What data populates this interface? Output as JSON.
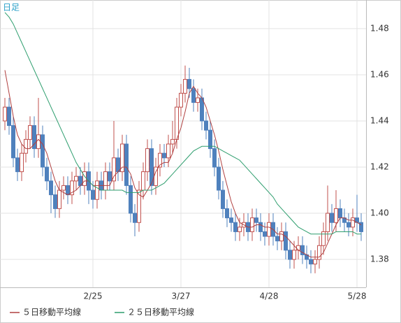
{
  "chart_data": {
    "type": "candlestick",
    "title": "日足",
    "categories": [
      null,
      null,
      null,
      null,
      null,
      null,
      null,
      null,
      null,
      null,
      null,
      null,
      null,
      null,
      null,
      null,
      null,
      null,
      null,
      null,
      null,
      "2/25",
      null,
      null,
      null,
      null,
      null,
      null,
      null,
      null,
      null,
      null,
      null,
      null,
      null,
      null,
      null,
      null,
      null,
      null,
      null,
      null,
      "3/27",
      null,
      null,
      null,
      null,
      null,
      null,
      null,
      null,
      null,
      null,
      null,
      null,
      null,
      null,
      null,
      null,
      null,
      null,
      null,
      null,
      "4/28",
      null,
      null,
      null,
      null,
      null,
      null,
      null,
      null,
      null,
      null,
      null,
      null,
      null,
      null,
      null,
      null,
      null,
      null,
      null,
      null,
      "5/28",
      null
    ],
    "open": [
      1.44,
      1.446,
      1.438,
      1.424,
      1.418,
      1.426,
      1.432,
      1.438,
      1.428,
      1.434,
      1.42,
      1.414,
      1.408,
      1.402,
      1.41,
      1.412,
      1.408,
      1.414,
      1.416,
      1.412,
      1.418,
      1.41,
      1.406,
      1.414,
      1.41,
      1.418,
      1.414,
      1.424,
      1.418,
      1.43,
      1.412,
      1.4,
      1.396,
      1.41,
      1.418,
      1.428,
      1.412,
      1.42,
      1.426,
      1.424,
      1.43,
      1.432,
      1.446,
      1.452,
      1.458,
      1.454,
      1.448,
      1.45,
      1.44,
      1.436,
      1.428,
      1.42,
      1.41,
      1.402,
      1.398,
      1.396,
      1.392,
      1.394,
      1.396,
      1.392,
      1.398,
      1.396,
      1.392,
      1.39,
      1.396,
      1.39,
      1.388,
      1.392,
      1.384,
      1.38,
      1.384,
      1.386,
      1.382,
      1.38,
      1.378,
      1.38,
      1.386,
      1.392,
      1.4,
      1.396,
      1.402,
      1.398,
      1.396,
      1.394,
      1.398,
      1.396
    ],
    "high": [
      1.45,
      1.45,
      1.442,
      1.428,
      1.43,
      1.436,
      1.442,
      1.442,
      1.45,
      1.438,
      1.424,
      1.418,
      1.412,
      1.414,
      1.416,
      1.416,
      1.418,
      1.42,
      1.42,
      1.422,
      1.422,
      1.414,
      1.418,
      1.418,
      1.422,
      1.422,
      1.44,
      1.428,
      1.434,
      1.434,
      1.416,
      1.404,
      1.414,
      1.422,
      1.432,
      1.432,
      1.424,
      1.43,
      1.43,
      1.434,
      1.44,
      1.45,
      1.456,
      1.464,
      1.463,
      1.458,
      1.454,
      1.454,
      1.444,
      1.44,
      1.432,
      1.424,
      1.414,
      1.406,
      1.402,
      1.4,
      1.398,
      1.4,
      1.4,
      1.402,
      1.402,
      1.4,
      1.396,
      1.4,
      1.4,
      1.394,
      1.396,
      1.396,
      1.388,
      1.388,
      1.39,
      1.39,
      1.386,
      1.384,
      1.384,
      1.39,
      1.396,
      1.412,
      1.404,
      1.41,
      1.406,
      1.402,
      1.4,
      1.402,
      1.408,
      1.4
    ],
    "low": [
      1.436,
      1.434,
      1.42,
      1.414,
      1.414,
      1.422,
      1.428,
      1.424,
      1.424,
      1.416,
      1.41,
      1.4,
      1.398,
      1.398,
      1.406,
      1.404,
      1.404,
      1.41,
      1.408,
      1.408,
      1.404,
      1.402,
      1.402,
      1.406,
      1.406,
      1.41,
      1.41,
      1.414,
      1.414,
      1.408,
      1.396,
      1.39,
      1.392,
      1.406,
      1.414,
      1.408,
      1.408,
      1.416,
      1.42,
      1.42,
      1.426,
      1.428,
      1.442,
      1.448,
      1.45,
      1.444,
      1.444,
      1.436,
      1.432,
      1.424,
      1.416,
      1.406,
      1.398,
      1.394,
      1.392,
      1.388,
      1.388,
      1.39,
      1.388,
      1.388,
      1.392,
      1.388,
      1.386,
      1.386,
      1.386,
      1.384,
      1.384,
      1.38,
      1.376,
      1.376,
      1.38,
      1.378,
      1.376,
      1.374,
      1.374,
      1.376,
      1.382,
      1.388,
      1.392,
      1.392,
      1.394,
      1.392,
      1.39,
      1.39,
      1.392,
      1.388
    ],
    "close": [
      1.446,
      1.438,
      1.424,
      1.418,
      1.426,
      1.432,
      1.438,
      1.428,
      1.434,
      1.42,
      1.414,
      1.408,
      1.402,
      1.41,
      1.412,
      1.408,
      1.414,
      1.416,
      1.412,
      1.418,
      1.41,
      1.406,
      1.414,
      1.41,
      1.418,
      1.414,
      1.424,
      1.418,
      1.43,
      1.412,
      1.4,
      1.396,
      1.41,
      1.418,
      1.428,
      1.412,
      1.42,
      1.426,
      1.424,
      1.43,
      1.432,
      1.446,
      1.452,
      1.458,
      1.454,
      1.448,
      1.45,
      1.44,
      1.436,
      1.428,
      1.42,
      1.41,
      1.402,
      1.398,
      1.396,
      1.392,
      1.394,
      1.396,
      1.392,
      1.398,
      1.396,
      1.392,
      1.39,
      1.396,
      1.39,
      1.388,
      1.392,
      1.384,
      1.38,
      1.384,
      1.386,
      1.382,
      1.38,
      1.378,
      1.38,
      1.386,
      1.392,
      1.4,
      1.396,
      1.402,
      1.398,
      1.396,
      1.394,
      1.398,
      1.396,
      1.392
    ],
    "up_color": "#c0504d",
    "down_color": "#4f81bd",
    "series": [
      {
        "name": "５日移動平均線",
        "color": "#b04040",
        "values": [
          1.462,
          1.452,
          1.442,
          1.434,
          1.43,
          1.428,
          1.428,
          1.43,
          1.432,
          1.43,
          1.426,
          1.42,
          1.414,
          1.41,
          1.409,
          1.408,
          1.409,
          1.41,
          1.412,
          1.414,
          1.414,
          1.412,
          1.412,
          1.412,
          1.412,
          1.412,
          1.416,
          1.418,
          1.42,
          1.42,
          1.417,
          1.411,
          1.408,
          1.407,
          1.41,
          1.413,
          1.418,
          1.421,
          1.422,
          1.422,
          1.426,
          1.432,
          1.437,
          1.444,
          1.452,
          1.455,
          1.452,
          1.45,
          1.446,
          1.44,
          1.434,
          1.427,
          1.419,
          1.412,
          1.405,
          1.4,
          1.396,
          1.395,
          1.394,
          1.394,
          1.395,
          1.395,
          1.394,
          1.394,
          1.393,
          1.391,
          1.391,
          1.39,
          1.388,
          1.386,
          1.384,
          1.383,
          1.382,
          1.381,
          1.381,
          1.381,
          1.383,
          1.387,
          1.391,
          1.395,
          1.398,
          1.398,
          1.397,
          1.397,
          1.396,
          1.395
        ]
      },
      {
        "name": "２５日移動平均線",
        "color": "#2e9e6e",
        "values": [
          1.487,
          1.485,
          1.482,
          1.478,
          1.474,
          1.47,
          1.466,
          1.462,
          1.458,
          1.454,
          1.45,
          1.446,
          1.442,
          1.438,
          1.434,
          1.43,
          1.426,
          1.422,
          1.419,
          1.416,
          1.414,
          1.412,
          1.411,
          1.41,
          1.41,
          1.41,
          1.41,
          1.41,
          1.41,
          1.409,
          1.409,
          1.409,
          1.409,
          1.41,
          1.41,
          1.41,
          1.411,
          1.412,
          1.413,
          1.415,
          1.417,
          1.419,
          1.421,
          1.423,
          1.425,
          1.427,
          1.428,
          1.429,
          1.429,
          1.429,
          1.429,
          1.428,
          1.427,
          1.426,
          1.425,
          1.424,
          1.423,
          1.421,
          1.419,
          1.417,
          1.415,
          1.413,
          1.411,
          1.409,
          1.407,
          1.404,
          1.402,
          1.4,
          1.398,
          1.396,
          1.394,
          1.393,
          1.392,
          1.391,
          1.391,
          1.391,
          1.391,
          1.391,
          1.391,
          1.392,
          1.392,
          1.392,
          1.392,
          1.392,
          1.391,
          1.391
        ]
      }
    ],
    "ylim": [
      1.3679,
      1.4924
    ],
    "yticks": [
      1.38,
      {
        "value": 1.4,
        "label": "1.40"
      },
      1.42,
      1.44,
      1.46,
      1.48
    ],
    "grid": true
  }
}
